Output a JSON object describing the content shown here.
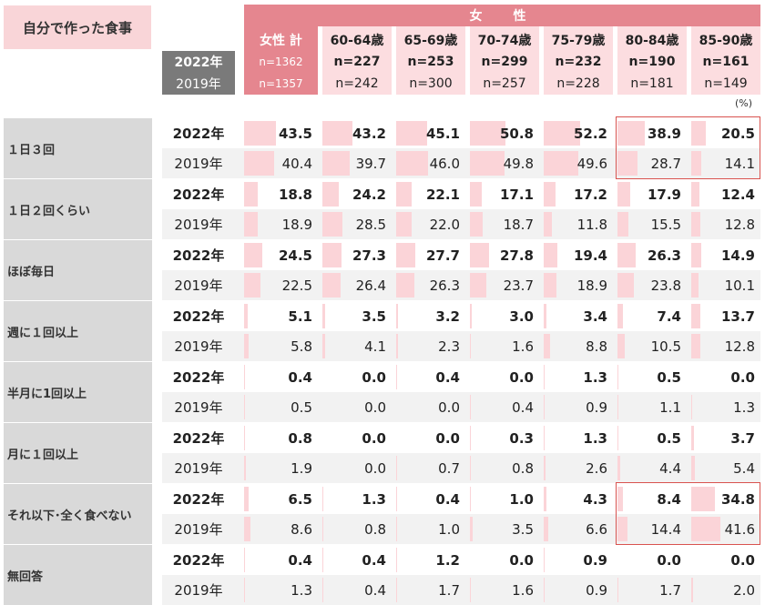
{
  "title": "自分で作った食事",
  "chart_data": {
    "type": "table",
    "title": "自分で作った食事",
    "group_label": "女　性",
    "unit": "(%)",
    "years": [
      "2022年",
      "2019年"
    ],
    "columns": [
      {
        "label": "女性 計",
        "n2022": "n=1362",
        "n2019": "n=1357"
      },
      {
        "label": "60-64歳",
        "n2022": "n=227",
        "n2019": "n=242"
      },
      {
        "label": "65-69歳",
        "n2022": "n=253",
        "n2019": "n=300"
      },
      {
        "label": "70-74歳",
        "n2022": "n=299",
        "n2019": "n=257"
      },
      {
        "label": "75-79歳",
        "n2022": "n=232",
        "n2019": "n=228"
      },
      {
        "label": "80-84歳",
        "n2022": "n=190",
        "n2019": "n=181"
      },
      {
        "label": "85-90歳",
        "n2022": "n=161",
        "n2019": "n=149"
      }
    ],
    "rows": [
      {
        "category": "１日３回",
        "v2022": [
          43.5,
          43.2,
          45.1,
          50.8,
          52.2,
          38.9,
          20.5
        ],
        "v2019": [
          40.4,
          39.7,
          46.0,
          49.8,
          49.6,
          28.7,
          14.1
        ]
      },
      {
        "category": "１日２回くらい",
        "v2022": [
          18.8,
          24.2,
          22.1,
          17.1,
          17.2,
          17.9,
          12.4
        ],
        "v2019": [
          18.9,
          28.5,
          22.0,
          18.7,
          11.8,
          15.5,
          12.8
        ]
      },
      {
        "category": "ほぼ毎日",
        "v2022": [
          24.5,
          27.3,
          27.7,
          27.8,
          19.4,
          26.3,
          14.9
        ],
        "v2019": [
          22.5,
          26.4,
          26.3,
          23.7,
          18.9,
          23.8,
          10.1
        ]
      },
      {
        "category": "週に１回以上",
        "v2022": [
          5.1,
          3.5,
          3.2,
          3.0,
          3.4,
          7.4,
          13.7
        ],
        "v2019": [
          5.8,
          4.1,
          2.3,
          1.6,
          8.8,
          10.5,
          12.8
        ]
      },
      {
        "category": "半月に1回以上",
        "v2022": [
          0.4,
          0.0,
          0.4,
          0.0,
          1.3,
          0.5,
          0.0
        ],
        "v2019": [
          0.5,
          0.0,
          0.0,
          0.4,
          0.9,
          1.1,
          1.3
        ]
      },
      {
        "category": "月に１回以上",
        "v2022": [
          0.8,
          0.0,
          0.0,
          0.3,
          1.3,
          0.5,
          3.7
        ],
        "v2019": [
          1.9,
          0.0,
          0.7,
          0.8,
          2.6,
          4.4,
          5.4
        ]
      },
      {
        "category": "それ以下･全く食べない",
        "v2022": [
          6.5,
          1.3,
          0.4,
          1.0,
          4.3,
          8.4,
          34.8
        ],
        "v2019": [
          8.6,
          0.8,
          1.0,
          3.5,
          6.6,
          14.4,
          41.6
        ]
      },
      {
        "category": "無回答",
        "v2022": [
          0.4,
          0.4,
          1.2,
          0.0,
          0.9,
          0.0,
          0.0
        ],
        "v2019": [
          1.3,
          0.4,
          1.7,
          1.6,
          0.9,
          1.7,
          2.0
        ]
      }
    ],
    "bar_max": 100,
    "highlight_color": "#d9534f",
    "bar_color": "#fbd4d8"
  }
}
